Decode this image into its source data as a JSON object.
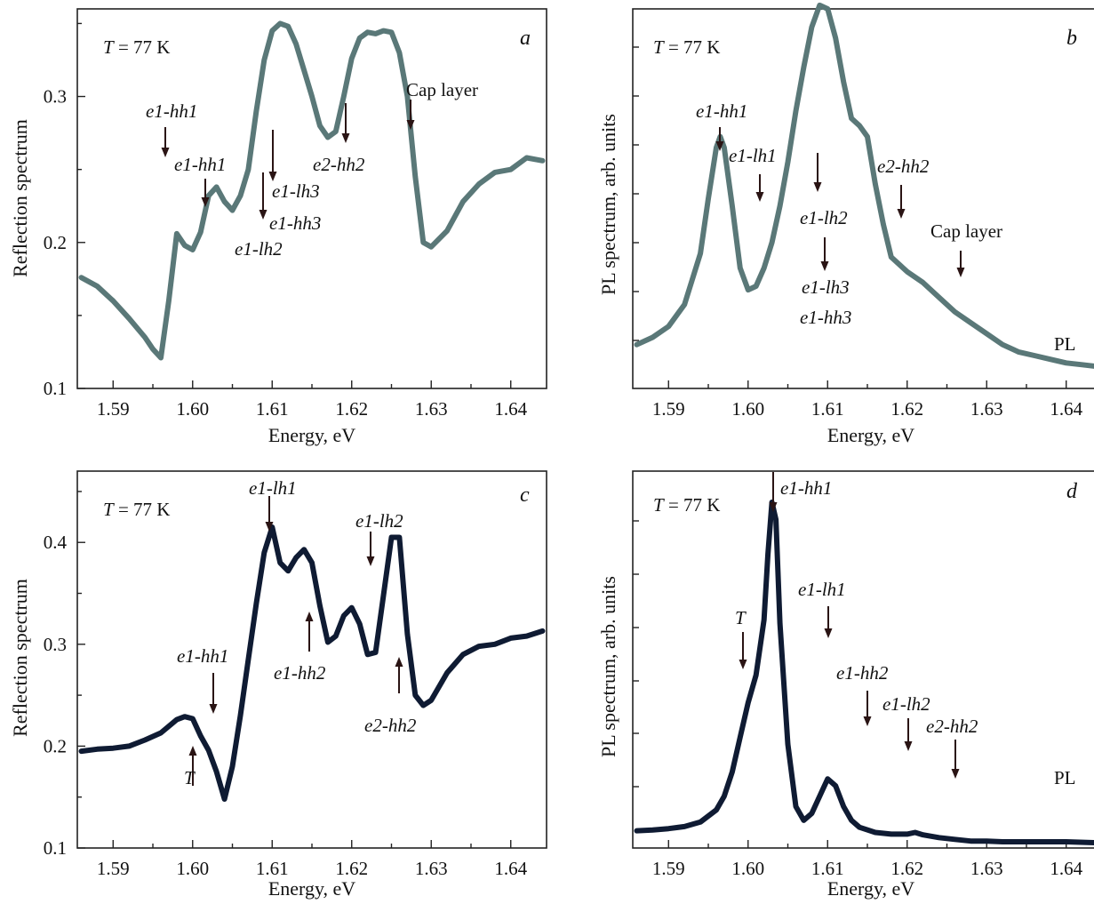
{
  "colors": {
    "gray_curve": "#5a7878",
    "dark_curve": "#0f1b33",
    "arrow": "#2a1414"
  },
  "chart_data": [
    {
      "panel": "a",
      "type": "line",
      "temperature_label": "T = 77 K",
      "xlabel": "Energy, eV",
      "ylabel": "Reflection spectrum",
      "xlim": [
        1.5855,
        1.6445
      ],
      "ylim": [
        0.1,
        0.36
      ],
      "xticks": [
        "1.59",
        "1.60",
        "1.61",
        "1.62",
        "1.63",
        "1.64"
      ],
      "yticks": [
        "0.1",
        "0.2",
        "0.3"
      ],
      "color": "#5a7878",
      "series": [
        {
          "x": [
            1.586,
            1.588,
            1.59,
            1.592,
            1.594,
            1.595,
            1.596,
            1.597,
            1.598,
            1.599,
            1.6,
            1.601,
            1.602,
            1.603,
            1.604,
            1.605,
            1.606,
            1.607,
            1.608,
            1.609,
            1.61,
            1.611,
            1.612,
            1.613,
            1.614,
            1.615,
            1.616,
            1.617,
            1.618,
            1.619,
            1.62,
            1.621,
            1.622,
            1.623,
            1.624,
            1.625,
            1.626,
            1.627,
            1.628,
            1.629,
            1.63,
            1.632,
            1.634,
            1.636,
            1.638,
            1.64,
            1.642,
            1.644
          ],
          "y": [
            0.176,
            0.17,
            0.16,
            0.148,
            0.135,
            0.127,
            0.121,
            0.16,
            0.206,
            0.198,
            0.195,
            0.207,
            0.232,
            0.238,
            0.228,
            0.222,
            0.232,
            0.25,
            0.29,
            0.325,
            0.345,
            0.35,
            0.348,
            0.336,
            0.318,
            0.3,
            0.28,
            0.272,
            0.276,
            0.3,
            0.326,
            0.34,
            0.344,
            0.343,
            0.345,
            0.344,
            0.33,
            0.3,
            0.245,
            0.2,
            0.197,
            0.208,
            0.228,
            0.24,
            0.248,
            0.25,
            0.258,
            0.256
          ]
        }
      ],
      "annotations": [
        {
          "text": "e1-hh1",
          "x": 1.596,
          "dir": "down"
        },
        {
          "text": "e1-hh1",
          "x": 1.6015,
          "dir": "down"
        },
        {
          "text": "e1-lh2",
          "x": 1.6088,
          "dir": "up"
        },
        {
          "text": "e1-hh3",
          "x": 1.6098,
          "dir": "up"
        },
        {
          "text": "e1-lh3",
          "x": 1.6098,
          "dir": "up"
        },
        {
          "text": "e2-hh2",
          "x": 1.6195,
          "dir": "up"
        },
        {
          "text": "Cap layer",
          "x": 1.6275,
          "dir": "down"
        }
      ]
    },
    {
      "panel": "b",
      "type": "line",
      "temperature_label": "T = 77 K",
      "xlabel": "Energy, eV",
      "ylabel": "PL spectrum, arb. units",
      "series_label": "PL",
      "xlim": [
        1.5855,
        1.6445
      ],
      "ylim": [
        0,
        1.04
      ],
      "xticks": [
        "1.59",
        "1.60",
        "1.61",
        "1.62",
        "1.63",
        "1.64"
      ],
      "color": "#5a7878",
      "series": [
        {
          "x": [
            1.586,
            1.588,
            1.59,
            1.592,
            1.594,
            1.595,
            1.596,
            1.5965,
            1.597,
            1.598,
            1.599,
            1.6,
            1.601,
            1.602,
            1.603,
            1.604,
            1.605,
            1.606,
            1.607,
            1.608,
            1.609,
            1.61,
            1.611,
            1.612,
            1.613,
            1.614,
            1.615,
            1.616,
            1.617,
            1.618,
            1.62,
            1.622,
            1.624,
            1.626,
            1.628,
            1.63,
            1.632,
            1.634,
            1.636,
            1.638,
            1.64,
            1.642,
            1.644
          ],
          "y": [
            0.12,
            0.14,
            0.17,
            0.23,
            0.37,
            0.52,
            0.66,
            0.69,
            0.66,
            0.5,
            0.33,
            0.27,
            0.28,
            0.33,
            0.4,
            0.5,
            0.62,
            0.76,
            0.88,
            0.99,
            1.05,
            1.04,
            0.96,
            0.84,
            0.74,
            0.72,
            0.69,
            0.56,
            0.45,
            0.36,
            0.32,
            0.29,
            0.25,
            0.21,
            0.18,
            0.15,
            0.12,
            0.1,
            0.09,
            0.08,
            0.07,
            0.065,
            0.06
          ]
        }
      ],
      "annotations": [
        {
          "text": "e1-hh1",
          "x": 1.5965,
          "dir": "down"
        },
        {
          "text": "e1-lh1",
          "x": 1.601,
          "dir": "down"
        },
        {
          "text": "e1-lh2",
          "x": 1.609,
          "dir": "up"
        },
        {
          "text": "e1-lh3",
          "x": 1.609,
          "dir": "up"
        },
        {
          "text": "e1-hh3",
          "x": 1.609,
          "dir": "up"
        },
        {
          "text": "e2-hh2",
          "x": 1.6195,
          "dir": "down"
        },
        {
          "text": "Cap layer",
          "x": 1.6275,
          "dir": "down"
        }
      ]
    },
    {
      "panel": "c",
      "type": "line",
      "temperature_label": "T = 77 K",
      "xlabel": "Energy, eV",
      "ylabel": "Reflection spectrum",
      "xlim": [
        1.5855,
        1.6445
      ],
      "ylim": [
        0.1,
        0.47
      ],
      "xticks": [
        "1.59",
        "1.60",
        "1.61",
        "1.62",
        "1.63",
        "1.64"
      ],
      "yticks": [
        "0.1",
        "0.2",
        "0.3",
        "0.4"
      ],
      "color": "#0f1b33",
      "series": [
        {
          "x": [
            1.586,
            1.588,
            1.59,
            1.592,
            1.594,
            1.596,
            1.598,
            1.599,
            1.6,
            1.601,
            1.602,
            1.603,
            1.604,
            1.605,
            1.606,
            1.607,
            1.608,
            1.609,
            1.61,
            1.611,
            1.612,
            1.613,
            1.614,
            1.615,
            1.616,
            1.617,
            1.618,
            1.619,
            1.62,
            1.621,
            1.622,
            1.623,
            1.624,
            1.625,
            1.626,
            1.627,
            1.628,
            1.629,
            1.63,
            1.632,
            1.634,
            1.636,
            1.638,
            1.64,
            1.642,
            1.644
          ],
          "y": [
            0.195,
            0.197,
            0.198,
            0.2,
            0.206,
            0.213,
            0.226,
            0.229,
            0.227,
            0.21,
            0.196,
            0.175,
            0.148,
            0.18,
            0.23,
            0.285,
            0.34,
            0.39,
            0.415,
            0.38,
            0.372,
            0.385,
            0.393,
            0.38,
            0.338,
            0.302,
            0.308,
            0.328,
            0.336,
            0.32,
            0.29,
            0.292,
            0.348,
            0.405,
            0.405,
            0.31,
            0.25,
            0.24,
            0.245,
            0.272,
            0.29,
            0.298,
            0.3,
            0.306,
            0.308,
            0.313
          ]
        }
      ],
      "annotations": [
        {
          "text": "e1-hh1",
          "x": 1.6025,
          "dir": "down"
        },
        {
          "text": "T",
          "x": 1.6,
          "dir": "up"
        },
        {
          "text": "e1-lh1",
          "x": 1.61,
          "dir": "down"
        },
        {
          "text": "e1-hh2",
          "x": 1.6155,
          "dir": "up"
        },
        {
          "text": "e1-lh2",
          "x": 1.6225,
          "dir": "down"
        },
        {
          "text": "e2-hh2",
          "x": 1.6265,
          "dir": "up"
        }
      ]
    },
    {
      "panel": "d",
      "type": "line",
      "temperature_label": "T = 77 K",
      "xlabel": "Energy, eV",
      "ylabel": "PL spectrum, arb. units",
      "series_label": "PL",
      "xlim": [
        1.5855,
        1.6445
      ],
      "ylim": [
        0,
        1.09
      ],
      "xticks": [
        "1.59",
        "1.60",
        "1.61",
        "1.62",
        "1.63",
        "1.64"
      ],
      "color": "#0f1b33",
      "series": [
        {
          "x": [
            1.586,
            1.588,
            1.59,
            1.592,
            1.594,
            1.596,
            1.597,
            1.598,
            1.599,
            1.6,
            1.601,
            1.602,
            1.6025,
            1.603,
            1.6035,
            1.604,
            1.605,
            1.606,
            1.607,
            1.608,
            1.609,
            1.61,
            1.611,
            1.612,
            1.613,
            1.614,
            1.616,
            1.618,
            1.62,
            1.621,
            1.622,
            1.624,
            1.626,
            1.628,
            1.63,
            1.632,
            1.636,
            1.64,
            1.644
          ],
          "y": [
            0.05,
            0.052,
            0.056,
            0.062,
            0.075,
            0.11,
            0.15,
            0.22,
            0.32,
            0.42,
            0.5,
            0.66,
            0.85,
            1.0,
            0.95,
            0.65,
            0.3,
            0.12,
            0.08,
            0.1,
            0.15,
            0.2,
            0.18,
            0.12,
            0.08,
            0.06,
            0.045,
            0.04,
            0.04,
            0.045,
            0.038,
            0.03,
            0.025,
            0.02,
            0.02,
            0.018,
            0.018,
            0.018,
            0.015
          ]
        }
      ],
      "annotations": [
        {
          "text": "e1-hh1",
          "x": 1.603,
          "dir": "down"
        },
        {
          "text": "T",
          "x": 1.5995,
          "dir": "down"
        },
        {
          "text": "e1-lh1",
          "x": 1.61,
          "dir": "down"
        },
        {
          "text": "e1-hh2",
          "x": 1.6155,
          "dir": "down"
        },
        {
          "text": "e1-lh2",
          "x": 1.6208,
          "dir": "down"
        },
        {
          "text": "e2-hh2",
          "x": 1.6265,
          "dir": "down"
        }
      ]
    }
  ]
}
